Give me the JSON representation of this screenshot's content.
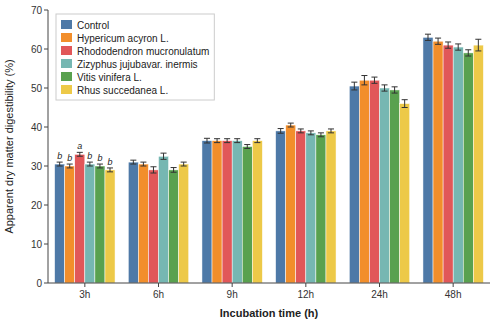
{
  "chart_data": {
    "type": "bar",
    "categories": [
      "3h",
      "6h",
      "9h",
      "12h",
      "24h",
      "48h"
    ],
    "series": [
      {
        "name": "Control",
        "values": [
          30.5,
          31.0,
          36.5,
          39.0,
          50.5,
          63.0
        ],
        "errors": [
          0.5,
          0.5,
          0.6,
          0.6,
          1.0,
          0.8
        ]
      },
      {
        "name": "Hypericum acyron L.",
        "values": [
          30.0,
          30.5,
          36.5,
          40.5,
          52.0,
          62.0
        ],
        "errors": [
          0.5,
          0.5,
          0.5,
          0.5,
          1.2,
          0.8
        ]
      },
      {
        "name": "Rhododendron mucronulatum",
        "values": [
          33.0,
          29.0,
          36.5,
          39.0,
          52.0,
          61.0
        ],
        "errors": [
          0.5,
          0.8,
          0.5,
          0.5,
          0.8,
          0.8
        ]
      },
      {
        "name": "Zizyphus jujubavar. inermis",
        "values": [
          30.5,
          32.5,
          36.5,
          38.5,
          50.0,
          60.5
        ],
        "errors": [
          0.5,
          0.8,
          0.5,
          0.5,
          0.8,
          0.8
        ]
      },
      {
        "name": "Vitis vinifera L.",
        "values": [
          30.0,
          29.0,
          35.0,
          38.0,
          49.5,
          59.0
        ],
        "errors": [
          0.5,
          0.6,
          0.5,
          0.5,
          0.8,
          0.8
        ]
      },
      {
        "name": "Rhus succedanea L.",
        "values": [
          29.0,
          30.5,
          36.5,
          39.0,
          46.0,
          61.0
        ],
        "errors": [
          0.5,
          0.5,
          0.5,
          0.5,
          1.0,
          1.5
        ]
      }
    ],
    "annotations": [
      {
        "text": "b",
        "category": "3h",
        "series": "Control"
      },
      {
        "text": "b",
        "category": "3h",
        "series": "Hypericum acyron L."
      },
      {
        "text": "a",
        "category": "3h",
        "series": "Rhododendron mucronulatum"
      },
      {
        "text": "b",
        "category": "3h",
        "series": "Zizyphus jujubavar. inermis"
      },
      {
        "text": "b",
        "category": "3h",
        "series": "Vitis vinifera L."
      },
      {
        "text": "b",
        "category": "3h",
        "series": "Rhus succedanea L."
      }
    ],
    "ylabel": "Apparent dry matter digestibility (%)",
    "xlabel": "Incubation time (h)",
    "ylim": [
      0,
      70
    ],
    "yticks": [
      0,
      10,
      20,
      30,
      40,
      50,
      60,
      70
    ],
    "grid": false,
    "legend": "top-left"
  }
}
